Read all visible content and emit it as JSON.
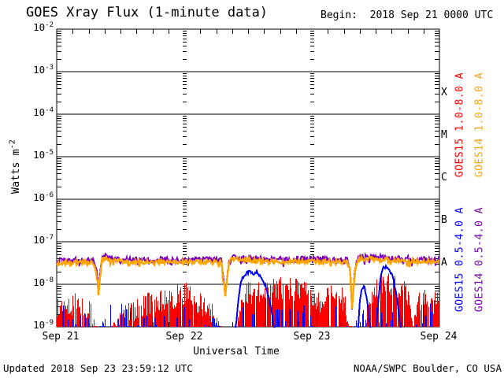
{
  "chart_data": {
    "type": "line",
    "title": "GOES Xray Flux (1-minute data)",
    "begin_label": "Begin:  2018 Sep 21 0000 UTC",
    "xlabel": "Universal Time",
    "ylabel": {
      "base": "Watts m",
      "exp": "-2"
    },
    "y_axis": {
      "base": "10",
      "exponents": [
        "-2",
        "-3",
        "-4",
        "-5",
        "-6",
        "-7",
        "-8",
        "-9"
      ]
    },
    "ylim_log10": [
      -9,
      -2
    ],
    "xlim_days": [
      0,
      3
    ],
    "x_ticks": [
      "Sep 21",
      "Sep 22",
      "Sep 23",
      "Sep 24"
    ],
    "grid": {
      "decade_lines": true,
      "day_lines_dashed": true,
      "hour_tick_interval_h": 3
    },
    "flux_classes": [
      {
        "label": "X",
        "log_center": -3.5
      },
      {
        "label": "M",
        "log_center": -4.5
      },
      {
        "label": "C",
        "log_center": -5.5
      },
      {
        "label": "B",
        "log_center": -6.5
      },
      {
        "label": "A",
        "log_center": -7.5
      }
    ],
    "legend": [
      {
        "label": "GOES15 1.0-8.0 A",
        "color": "#FF0000"
      },
      {
        "label": "GOES14 1.0-8.0 A",
        "color": "#FFA500"
      },
      {
        "label": "GOES15 0.5-4.0 A",
        "color": "#0000FF"
      },
      {
        "label": "GOES14 0.5-4.0 A",
        "color": "#8000C0"
      }
    ],
    "updated": "Updated 2018 Sep 23 23:59:12 UTC",
    "credit": "NOAA/SWPC Boulder, CO USA",
    "series": [
      {
        "name": "GOES15 1.0-8.0 A",
        "color": "#FF0000",
        "style": "noise-spikes",
        "density": 0.9,
        "jitter": 0.55,
        "envelope": [
          [
            0.0,
            -8.3
          ],
          [
            0.05,
            -8.15
          ],
          [
            0.1,
            -8.25
          ],
          [
            0.15,
            -8.15
          ],
          [
            0.2,
            -8.25
          ],
          [
            0.26,
            -8.35
          ],
          [
            0.3,
            -8.7
          ],
          [
            0.33,
            -9.3
          ],
          [
            0.4,
            -9.3
          ],
          [
            0.43,
            -8.8
          ],
          [
            0.5,
            -8.55
          ],
          [
            0.6,
            -8.35
          ],
          [
            0.7,
            -8.2
          ],
          [
            0.8,
            -8.15
          ],
          [
            0.9,
            -8.05
          ],
          [
            0.97,
            -7.95
          ],
          [
            1.05,
            -7.95
          ],
          [
            1.12,
            -8.2
          ],
          [
            1.2,
            -8.35
          ],
          [
            1.27,
            -8.6
          ],
          [
            1.31,
            -9.3
          ],
          [
            1.41,
            -9.3
          ],
          [
            1.43,
            -8.2
          ],
          [
            1.48,
            -7.95
          ],
          [
            1.55,
            -7.9
          ],
          [
            1.62,
            -8.0
          ],
          [
            1.7,
            -7.85
          ],
          [
            1.78,
            -7.78
          ],
          [
            1.85,
            -7.85
          ],
          [
            1.92,
            -7.88
          ],
          [
            1.99,
            -7.9
          ],
          [
            2.03,
            -8.1
          ],
          [
            2.08,
            -8.15
          ],
          [
            2.13,
            -7.9
          ],
          [
            2.2,
            -7.88
          ],
          [
            2.26,
            -8.2
          ],
          [
            2.3,
            -8.9
          ],
          [
            2.33,
            -9.3
          ],
          [
            2.4,
            -9.3
          ],
          [
            2.43,
            -8.5
          ],
          [
            2.47,
            -7.9
          ],
          [
            2.52,
            -7.78
          ],
          [
            2.58,
            -7.72
          ],
          [
            2.64,
            -7.75
          ],
          [
            2.7,
            -7.8
          ],
          [
            2.75,
            -7.95
          ],
          [
            2.79,
            -9.0
          ],
          [
            2.83,
            -8.15
          ],
          [
            2.88,
            -8.05
          ],
          [
            2.93,
            -8.2
          ],
          [
            2.97,
            -8.1
          ],
          [
            3.0,
            -8.2
          ]
        ]
      },
      {
        "name": "GOES15 0.5-4.0 A",
        "color": "#0000FF",
        "style": "noise-spikes",
        "density": 0.3,
        "jitter": 0.55,
        "envelope": [
          [
            0.0,
            -8.45
          ],
          [
            0.1,
            -8.4
          ],
          [
            0.2,
            -8.45
          ],
          [
            0.28,
            -8.9
          ],
          [
            0.32,
            -9.3
          ],
          [
            0.39,
            -8.35
          ],
          [
            0.45,
            -8.2
          ],
          [
            0.52,
            -8.5
          ],
          [
            0.65,
            -8.55
          ],
          [
            0.8,
            -8.5
          ],
          [
            0.95,
            -8.35
          ],
          [
            1.05,
            -8.3
          ],
          [
            1.15,
            -8.5
          ],
          [
            1.25,
            -8.7
          ],
          [
            1.3,
            -9.3
          ],
          [
            1.4,
            -9.3
          ],
          [
            1.45,
            -8.3
          ],
          [
            1.6,
            -8.3
          ],
          [
            1.7,
            -8.35
          ],
          [
            1.8,
            -8.4
          ],
          [
            1.95,
            -8.5
          ],
          [
            2.1,
            -8.45
          ],
          [
            2.22,
            -8.55
          ],
          [
            2.3,
            -9.3
          ],
          [
            2.36,
            -8.6
          ],
          [
            2.45,
            -8.4
          ],
          [
            2.6,
            -8.4
          ],
          [
            2.72,
            -8.5
          ],
          [
            2.8,
            -8.7
          ],
          [
            2.87,
            -8.35
          ],
          [
            2.93,
            -8.45
          ],
          [
            2.97,
            -8.15
          ],
          [
            3.0,
            -8.35
          ]
        ],
        "peaks": [
          [
            [
              1.4,
              -9.2
            ],
            [
              1.42,
              -8.5
            ],
            [
              1.44,
              -8.0
            ],
            [
              1.46,
              -7.82
            ],
            [
              1.49,
              -7.73
            ],
            [
              1.52,
              -7.7
            ],
            [
              1.55,
              -7.76
            ],
            [
              1.57,
              -7.71
            ],
            [
              1.6,
              -7.82
            ],
            [
              1.62,
              -7.95
            ],
            [
              1.64,
              -8.05
            ],
            [
              1.66,
              -8.3
            ],
            [
              1.69,
              -8.7
            ],
            [
              1.71,
              -9.2
            ]
          ],
          [
            [
              2.36,
              -9.2
            ],
            [
              2.375,
              -8.45
            ],
            [
              2.39,
              -8.1
            ],
            [
              2.41,
              -8.05
            ],
            [
              2.43,
              -8.3
            ],
            [
              2.45,
              -8.8
            ],
            [
              2.46,
              -9.2
            ]
          ],
          [
            [
              2.5,
              -9.2
            ],
            [
              2.52,
              -8.4
            ],
            [
              2.54,
              -7.8
            ],
            [
              2.56,
              -7.62
            ],
            [
              2.58,
              -7.58
            ],
            [
              2.6,
              -7.65
            ],
            [
              2.62,
              -7.72
            ],
            [
              2.64,
              -7.88
            ],
            [
              2.66,
              -8.2
            ],
            [
              2.68,
              -8.6
            ],
            [
              2.7,
              -9.2
            ]
          ]
        ]
      },
      {
        "name": "GOES14 0.5-4.0 A",
        "color": "#8000C0",
        "style": "band",
        "amp": 0.07,
        "width": 2,
        "hair": 0.06,
        "level": [
          [
            0.0,
            -7.45
          ],
          [
            0.15,
            -7.44
          ],
          [
            0.29,
            -7.45
          ],
          [
            0.315,
            -7.7
          ],
          [
            0.327,
            -8.15
          ],
          [
            0.34,
            -7.8
          ],
          [
            0.355,
            -7.38
          ],
          [
            0.38,
            -7.34
          ],
          [
            0.45,
            -7.41
          ],
          [
            0.6,
            -7.43
          ],
          [
            0.8,
            -7.42
          ],
          [
            1.0,
            -7.43
          ],
          [
            1.15,
            -7.42
          ],
          [
            1.29,
            -7.44
          ],
          [
            1.305,
            -7.75
          ],
          [
            1.321,
            -8.2
          ],
          [
            1.335,
            -7.85
          ],
          [
            1.35,
            -7.45
          ],
          [
            1.37,
            -7.34
          ],
          [
            1.42,
            -7.36
          ],
          [
            1.5,
            -7.38
          ],
          [
            1.65,
            -7.41
          ],
          [
            1.8,
            -7.42
          ],
          [
            2.0,
            -7.41
          ],
          [
            2.15,
            -7.42
          ],
          [
            2.28,
            -7.44
          ],
          [
            2.3,
            -7.65
          ],
          [
            2.315,
            -8.45
          ],
          [
            2.33,
            -7.95
          ],
          [
            2.345,
            -7.5
          ],
          [
            2.37,
            -7.36
          ],
          [
            2.45,
            -7.35
          ],
          [
            2.55,
            -7.37
          ],
          [
            2.65,
            -7.39
          ],
          [
            2.8,
            -7.41
          ],
          [
            3.0,
            -7.42
          ]
        ]
      },
      {
        "name": "GOES14 1.0-8.0 A",
        "color": "#FFA500",
        "style": "band",
        "amp": 0.05,
        "width": 2.4,
        "hair": 0.05,
        "level": [
          [
            0.0,
            -7.5
          ],
          [
            0.15,
            -7.49
          ],
          [
            0.29,
            -7.5
          ],
          [
            0.315,
            -7.75
          ],
          [
            0.327,
            -8.2
          ],
          [
            0.34,
            -7.85
          ],
          [
            0.355,
            -7.42
          ],
          [
            0.38,
            -7.38
          ],
          [
            0.45,
            -7.45
          ],
          [
            0.6,
            -7.48
          ],
          [
            0.8,
            -7.47
          ],
          [
            1.0,
            -7.48
          ],
          [
            1.15,
            -7.47
          ],
          [
            1.29,
            -7.49
          ],
          [
            1.305,
            -7.8
          ],
          [
            1.321,
            -8.25
          ],
          [
            1.335,
            -7.9
          ],
          [
            1.35,
            -7.5
          ],
          [
            1.37,
            -7.38
          ],
          [
            1.42,
            -7.4
          ],
          [
            1.5,
            -7.43
          ],
          [
            1.65,
            -7.46
          ],
          [
            1.8,
            -7.47
          ],
          [
            2.0,
            -7.46
          ],
          [
            2.15,
            -7.47
          ],
          [
            2.28,
            -7.49
          ],
          [
            2.3,
            -7.7
          ],
          [
            2.315,
            -8.52
          ],
          [
            2.33,
            -8.0
          ],
          [
            2.345,
            -7.55
          ],
          [
            2.37,
            -7.4
          ],
          [
            2.45,
            -7.4
          ],
          [
            2.55,
            -7.42
          ],
          [
            2.65,
            -7.44
          ],
          [
            2.8,
            -7.46
          ],
          [
            3.0,
            -7.47
          ]
        ]
      }
    ]
  }
}
